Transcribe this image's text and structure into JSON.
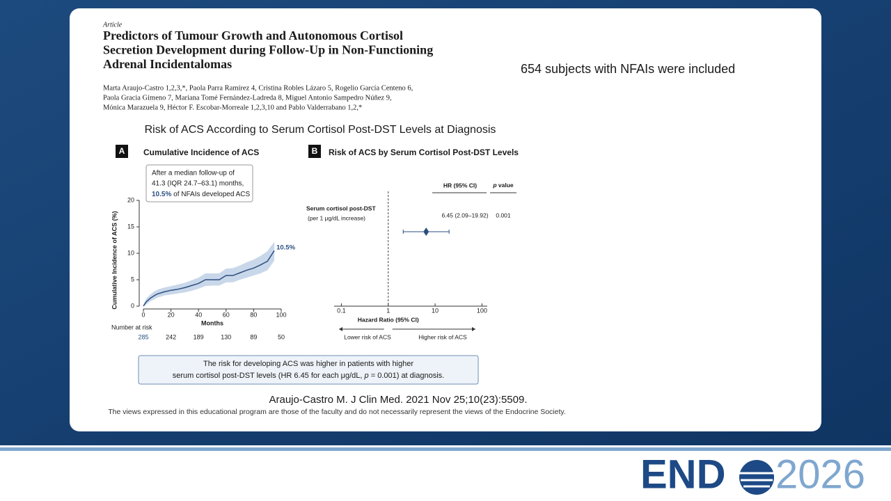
{
  "slide": {
    "side_note": "654 subjects with NFAIs were included",
    "citation": "Araujo-Castro M. J Clin Med. 2021 Nov 25;10(23):5509.",
    "disclaimer": "The views expressed in this educational program are those of the faculty and do not necessarily represent the views of the Endocrine Society.",
    "logo": {
      "word": "END",
      "year": "2026"
    }
  },
  "article": {
    "kind": "Article",
    "title_lines": [
      "Predictors of Tumour Growth and Autonomous Cortisol",
      "Secretion Development during Follow-Up in Non-Functioning",
      "Adrenal Incidentalomas"
    ],
    "author_lines": [
      "Marta Araujo-Castro 1,2,3,*, Paola Parra Ramírez 4, Cristina Robles Lázaro 5, Rogelio García Centeno 6,",
      "Paola Gracia Gimeno 7, Mariana Tomé Fernández-Ladreda 8, Miguel Antonio Sampedro Núñez 9,",
      "Mónica Marazuela 9, Héctor F. Escobar-Morreale 1,2,3,10 and Pablo Valderrabano 1,2,*"
    ]
  },
  "figure": {
    "title": "Risk of ACS According to Serum Cortisol Post-DST Levels at Diagnosis",
    "conclusion": [
      "The risk for developing ACS was higher in patients with higher",
      "serum cortisol post-DST levels (HR 6.45 for each μg/dL, ",
      "p",
      " = 0.001) at diagnosis."
    ]
  },
  "chart_data": [
    {
      "type": "line",
      "panel": "A",
      "title": "Cumulative Incidence of ACS",
      "annotation": [
        "After a median follow-up of",
        "41.3 (IQR 24.7–63.1) months,",
        "10.5%",
        " of NFAIs developed ACS"
      ],
      "xlabel": "Months",
      "ylabel": "Cumulative Incidence of ACS (%)",
      "xlim": [
        0,
        100
      ],
      "xticks": [
        0,
        20,
        40,
        60,
        80,
        100
      ],
      "ylim": [
        0,
        20
      ],
      "yticks": [
        0,
        5,
        10,
        15,
        20
      ],
      "color": "#2b4f80",
      "band_color": "#c9d7ea",
      "x": [
        0,
        2,
        5,
        8,
        10,
        15,
        20,
        25,
        30,
        35,
        40,
        45,
        50,
        55,
        60,
        65,
        70,
        75,
        80,
        85,
        90,
        95
      ],
      "values": [
        0,
        0.8,
        1.5,
        2.0,
        2.3,
        2.7,
        3.0,
        3.2,
        3.5,
        3.9,
        4.3,
        5.0,
        5.0,
        5.0,
        5.8,
        5.8,
        6.3,
        6.8,
        7.2,
        7.8,
        8.5,
        10.5
      ],
      "value_labels": [
        null,
        null,
        null,
        null,
        null,
        null,
        null,
        null,
        null,
        null,
        null,
        null,
        null,
        null,
        null,
        null,
        null,
        null,
        null,
        null,
        null,
        "10.5%"
      ],
      "band": {
        "lower": [
          0,
          0.3,
          0.9,
          1.3,
          1.6,
          2.0,
          2.2,
          2.4,
          2.6,
          2.9,
          3.3,
          3.8,
          3.9,
          3.9,
          4.5,
          4.5,
          5.0,
          5.4,
          5.8,
          6.2,
          6.8,
          8.6
        ],
        "upper": [
          0.3,
          1.4,
          2.2,
          2.8,
          3.1,
          3.5,
          3.8,
          4.1,
          4.4,
          4.9,
          5.4,
          6.2,
          6.2,
          6.2,
          7.1,
          7.2,
          7.7,
          8.3,
          8.8,
          9.5,
          10.4,
          12.2
        ]
      },
      "at_risk": {
        "label": "Number at risk",
        "months": [
          0,
          20,
          40,
          60,
          80,
          100
        ],
        "counts": [
          285,
          242,
          189,
          130,
          89,
          50
        ]
      }
    },
    {
      "type": "forest",
      "panel": "B",
      "title": "Risk of ACS by Serum Cortisol Post-DST Levels",
      "xlabel": "Hazard Ratio (95% CI)",
      "log_x": true,
      "xlim": [
        0.07,
        130
      ],
      "xticks": [
        0.1,
        1,
        10,
        100
      ],
      "reference": 1,
      "color": "#2b4f80",
      "column_headers": {
        "hr": "HR (95% CI)",
        "p_prefix": "p",
        "p_suffix": " value"
      },
      "rows": [
        {
          "label": "Serum cortisol post-DST",
          "sublabel": "(per 1 μg/dL increase)",
          "hr": 6.45,
          "ci": [
            2.09,
            19.92
          ],
          "hr_label": "6.45 (2.09–19.92)",
          "p": 0.001
        }
      ],
      "direction_labels": [
        "Lower risk of ACS",
        "Higher risk of ACS"
      ]
    }
  ]
}
